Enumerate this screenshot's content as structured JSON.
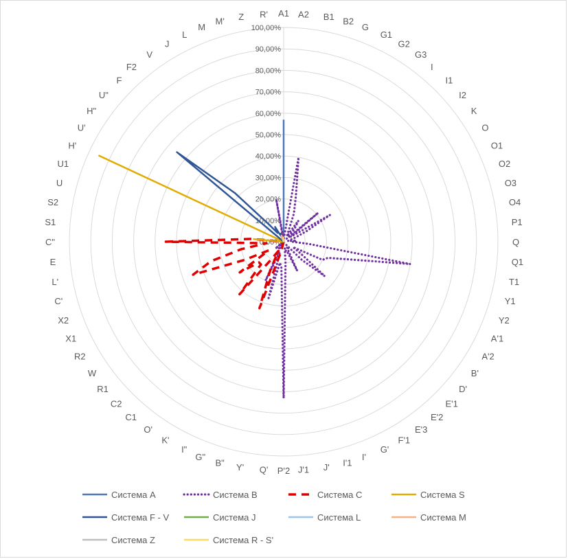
{
  "chart_data": {
    "type": "radar",
    "title": "",
    "categories": [
      "A1",
      "A2",
      "B1",
      "B2",
      "G",
      "G1",
      "G2",
      "G3",
      "I",
      "I1",
      "I2",
      "K",
      "O",
      "O1",
      "O2",
      "O3",
      "O4",
      "P1",
      "Q",
      "Q1",
      "T1",
      "Y1",
      "Y2",
      "A'1",
      "A'2",
      "B'",
      "D'",
      "E'1",
      "E'2",
      "E'3",
      "F'1",
      "G'",
      "I'",
      "I'1",
      "J'",
      "J'1",
      "P'2",
      "Q'",
      "Y'",
      "B\"",
      "G\"",
      "I\"",
      "K'",
      "O'",
      "C1",
      "C2",
      "R1",
      "W",
      "R2",
      "X1",
      "X2",
      "C'",
      "L'",
      "E",
      "C\"",
      "S1",
      "S2",
      "U",
      "U1",
      "H'",
      "U'",
      "H\"",
      "U\"",
      "F",
      "F2",
      "V",
      "J",
      "L",
      "M",
      "M'",
      "Z",
      "R'"
    ],
    "radial_axis": {
      "min": 0,
      "max": 1,
      "tick_values": [
        0,
        0.1,
        0.2,
        0.3,
        0.4,
        0.5,
        0.6,
        0.7,
        0.8,
        0.9,
        1.0
      ],
      "tick_labels": [
        "0,00%",
        "10,00%",
        "20,00%",
        "30,00%",
        "40,00%",
        "50,00%",
        "60,00%",
        "70,00%",
        "80,00%",
        "90,00%",
        "100,00%"
      ]
    },
    "gridlines": true,
    "legend_position": "bottom",
    "series": [
      {
        "name": "Система A",
        "color": "#4f79b4",
        "style": "solid",
        "values": [
          0.57,
          0,
          0,
          0,
          0,
          0,
          0,
          0,
          0,
          0,
          0,
          0,
          0,
          0,
          0,
          0,
          0,
          0,
          0,
          0,
          0,
          0,
          0,
          0,
          0,
          0,
          0,
          0,
          0,
          0,
          0,
          0,
          0,
          0,
          0,
          0,
          0,
          0,
          0,
          0,
          0,
          0,
          0,
          0,
          0,
          0,
          0,
          0,
          0,
          0,
          0,
          0,
          0,
          0,
          0,
          0,
          0,
          0,
          0,
          0,
          0,
          0,
          0,
          0,
          0,
          0,
          0,
          0,
          0,
          0,
          0,
          0
        ]
      },
      {
        "name": "Система B",
        "color": "#7030a0",
        "style": "dotted",
        "values": [
          0,
          0.02,
          0.4,
          0.22,
          0.14,
          0.05,
          0.03,
          0.12,
          0.08,
          0.02,
          0.21,
          0.04,
          0.25,
          0.12,
          0.06,
          0.03,
          0.02,
          0.06,
          0.04,
          0.12,
          0.6,
          0.32,
          0.22,
          0.2,
          0.05,
          0.1,
          0.25,
          0.12,
          0.02,
          0.04,
          0.03,
          0.15,
          0.05,
          0.05,
          0.03,
          0.1,
          0.73,
          0.12,
          0.1,
          0.28,
          0.05,
          0.2,
          0.03,
          0.04,
          0.03,
          0,
          0.05,
          0.02,
          0,
          0,
          0,
          0,
          0,
          0,
          0,
          0,
          0,
          0,
          0,
          0,
          0,
          0,
          0,
          0,
          0,
          0,
          0,
          0,
          0,
          0,
          0.2,
          0.02
        ]
      },
      {
        "name": "Система C",
        "color": "#e00000",
        "style": "dashed",
        "values": [
          0,
          0,
          0,
          0,
          0,
          0,
          0,
          0,
          0,
          0,
          0,
          0,
          0,
          0,
          0,
          0,
          0,
          0,
          0,
          0,
          0,
          0,
          0,
          0,
          0,
          0,
          0,
          0,
          0,
          0,
          0,
          0,
          0,
          0,
          0,
          0,
          0,
          0,
          0,
          0.05,
          0.33,
          0.15,
          0.05,
          0.1,
          0.32,
          0.15,
          0.15,
          0.25,
          0.08,
          0.2,
          0.45,
          0.35,
          0.2,
          0.08,
          0.55,
          0.15,
          0,
          0,
          0,
          0,
          0,
          0,
          0,
          0,
          0,
          0,
          0,
          0,
          0,
          0,
          0,
          0
        ]
      },
      {
        "name": "Система  S",
        "color": "#e0ac00",
        "style": "solid",
        "values": [
          0,
          0,
          0,
          0,
          0,
          0,
          0,
          0,
          0,
          0,
          0,
          0,
          0,
          0,
          0,
          0,
          0,
          0,
          0,
          0,
          0,
          0,
          0,
          0,
          0,
          0,
          0,
          0,
          0,
          0,
          0,
          0,
          0,
          0,
          0,
          0,
          0,
          0,
          0,
          0,
          0,
          0,
          0,
          0,
          0,
          0,
          0,
          0,
          0,
          0,
          0,
          0,
          0,
          0,
          0,
          0.14,
          0,
          0,
          0,
          0.95,
          0,
          0,
          0,
          0,
          0,
          0,
          0,
          0,
          0,
          0,
          0,
          0
        ]
      },
      {
        "name": "Система  F - V",
        "color": "#2f5597",
        "style": "solid",
        "values": [
          0,
          0,
          0,
          0,
          0,
          0,
          0,
          0,
          0,
          0,
          0,
          0,
          0,
          0,
          0,
          0,
          0,
          0,
          0,
          0,
          0,
          0,
          0,
          0,
          0,
          0,
          0,
          0,
          0,
          0,
          0,
          0,
          0,
          0,
          0,
          0,
          0,
          0,
          0,
          0,
          0,
          0,
          0,
          0,
          0,
          0,
          0,
          0,
          0,
          0,
          0,
          0,
          0,
          0,
          0,
          0,
          0,
          0,
          0,
          0,
          0,
          0,
          0.65,
          0.32,
          0.1,
          0.05,
          0.08,
          0.03,
          0.04,
          0,
          0,
          0
        ]
      },
      {
        "name": "Система J",
        "color": "#70ad47",
        "style": "solid",
        "values": [
          0,
          0,
          0,
          0,
          0,
          0,
          0,
          0,
          0,
          0,
          0,
          0,
          0,
          0,
          0,
          0,
          0,
          0,
          0,
          0,
          0,
          0,
          0,
          0,
          0,
          0,
          0,
          0,
          0,
          0,
          0,
          0,
          0,
          0,
          0,
          0,
          0,
          0,
          0,
          0,
          0,
          0,
          0,
          0,
          0,
          0,
          0,
          0,
          0,
          0,
          0,
          0,
          0,
          0,
          0,
          0,
          0,
          0,
          0,
          0,
          0,
          0,
          0,
          0,
          0,
          0,
          0,
          0,
          0,
          0,
          0,
          0
        ]
      },
      {
        "name": "Система L",
        "color": "#9dc3e6",
        "style": "solid",
        "values": [
          0,
          0,
          0,
          0,
          0,
          0,
          0,
          0,
          0,
          0,
          0,
          0,
          0,
          0,
          0,
          0,
          0,
          0,
          0,
          0,
          0,
          0,
          0,
          0,
          0,
          0,
          0,
          0,
          0,
          0,
          0,
          0,
          0,
          0,
          0,
          0,
          0,
          0,
          0,
          0,
          0,
          0,
          0,
          0,
          0,
          0,
          0,
          0,
          0,
          0,
          0,
          0,
          0,
          0,
          0,
          0,
          0,
          0,
          0,
          0,
          0,
          0,
          0,
          0,
          0,
          0,
          0,
          0.02,
          0,
          0,
          0,
          0
        ]
      },
      {
        "name": "Система M",
        "color": "#f4b183",
        "style": "solid",
        "values": [
          0,
          0,
          0,
          0,
          0,
          0,
          0,
          0,
          0,
          0,
          0,
          0,
          0,
          0,
          0,
          0,
          0,
          0,
          0,
          0,
          0,
          0,
          0,
          0,
          0,
          0,
          0,
          0,
          0,
          0,
          0,
          0,
          0,
          0,
          0,
          0,
          0,
          0,
          0,
          0,
          0,
          0,
          0,
          0,
          0,
          0,
          0,
          0,
          0,
          0,
          0,
          0,
          0,
          0,
          0,
          0,
          0,
          0,
          0,
          0,
          0,
          0,
          0,
          0,
          0,
          0,
          0,
          0,
          0.03,
          0.02,
          0,
          0
        ]
      },
      {
        "name": "Система Z",
        "color": "#bfbfbf",
        "style": "solid",
        "values": [
          0,
          0,
          0,
          0,
          0,
          0,
          0,
          0,
          0,
          0,
          0,
          0,
          0,
          0,
          0,
          0,
          0,
          0,
          0,
          0,
          0,
          0,
          0,
          0,
          0,
          0,
          0,
          0,
          0,
          0,
          0,
          0,
          0,
          0,
          0,
          0,
          0,
          0,
          0,
          0,
          0,
          0,
          0,
          0,
          0,
          0,
          0,
          0,
          0,
          0,
          0,
          0,
          0,
          0,
          0,
          0,
          0,
          0,
          0,
          0,
          0,
          0,
          0,
          0,
          0,
          0,
          0,
          0,
          0,
          0,
          0.02,
          0
        ]
      },
      {
        "name": "Система R - S'",
        "color": "#ffd966",
        "style": "solid",
        "values": [
          0,
          0,
          0,
          0,
          0,
          0,
          0,
          0,
          0,
          0,
          0,
          0,
          0,
          0,
          0,
          0,
          0,
          0,
          0,
          0,
          0,
          0,
          0,
          0,
          0,
          0,
          0,
          0,
          0,
          0,
          0,
          0,
          0,
          0,
          0,
          0,
          0,
          0,
          0,
          0,
          0,
          0,
          0,
          0,
          0,
          0,
          0,
          0,
          0,
          0,
          0,
          0,
          0,
          0,
          0,
          0,
          0,
          0,
          0,
          0,
          0,
          0,
          0,
          0,
          0,
          0,
          0,
          0,
          0,
          0,
          0,
          0.02
        ]
      }
    ]
  }
}
